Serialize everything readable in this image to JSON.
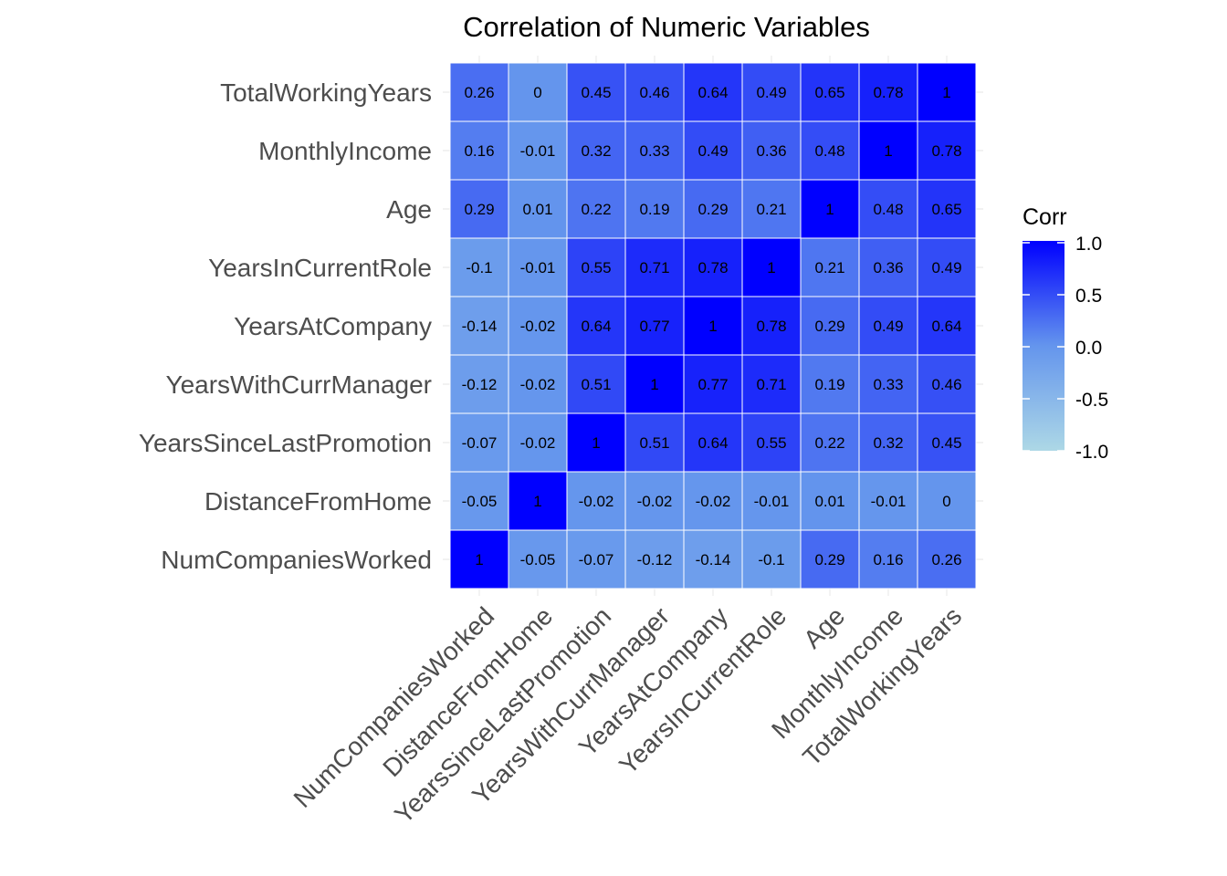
{
  "chart_data": {
    "type": "heatmap",
    "title": "Correlation of Numeric Variables",
    "x_categories": [
      "NumCompaniesWorked",
      "DistanceFromHome",
      "YearsSinceLastPromotion",
      "YearsWithCurrManager",
      "YearsAtCompany",
      "YearsInCurrentRole",
      "Age",
      "MonthlyIncome",
      "TotalWorkingYears"
    ],
    "y_categories": [
      "NumCompaniesWorked",
      "DistanceFromHome",
      "YearsSinceLastPromotion",
      "YearsWithCurrManager",
      "YearsAtCompany",
      "YearsInCurrentRole",
      "Age",
      "MonthlyIncome",
      "TotalWorkingYears"
    ],
    "y_order_note": "first y category is at the bottom",
    "values": [
      [
        1,
        -0.05,
        -0.07,
        -0.12,
        -0.14,
        -0.1,
        0.29,
        0.16,
        0.26
      ],
      [
        -0.05,
        1,
        -0.02,
        -0.02,
        -0.02,
        -0.01,
        0.01,
        -0.01,
        0
      ],
      [
        -0.07,
        -0.02,
        1,
        0.51,
        0.64,
        0.55,
        0.22,
        0.32,
        0.45
      ],
      [
        -0.12,
        -0.02,
        0.51,
        1,
        0.77,
        0.71,
        0.19,
        0.33,
        0.46
      ],
      [
        -0.14,
        -0.02,
        0.64,
        0.77,
        1,
        0.78,
        0.29,
        0.49,
        0.64
      ],
      [
        -0.1,
        -0.01,
        0.55,
        0.71,
        0.78,
        1,
        0.21,
        0.36,
        0.49
      ],
      [
        0.29,
        0.01,
        0.22,
        0.19,
        0.29,
        0.21,
        1,
        0.48,
        0.65
      ],
      [
        0.16,
        -0.01,
        0.32,
        0.33,
        0.49,
        0.36,
        0.48,
        1,
        0.78
      ],
      [
        0.26,
        0,
        0.45,
        0.46,
        0.64,
        0.49,
        0.65,
        0.78,
        1
      ]
    ],
    "legend": {
      "title": "Corr",
      "ticks": [
        1.0,
        0.5,
        0.0,
        -0.5,
        -1.0
      ],
      "tick_labels": [
        "1.0",
        "0.5",
        "0.0",
        "-0.5",
        "-1.0"
      ],
      "range": [
        -1,
        1
      ],
      "position": "right"
    },
    "colors": {
      "low": "#add8e6",
      "mid": "#6495ed",
      "high": "#0000ff"
    },
    "grid": true
  }
}
